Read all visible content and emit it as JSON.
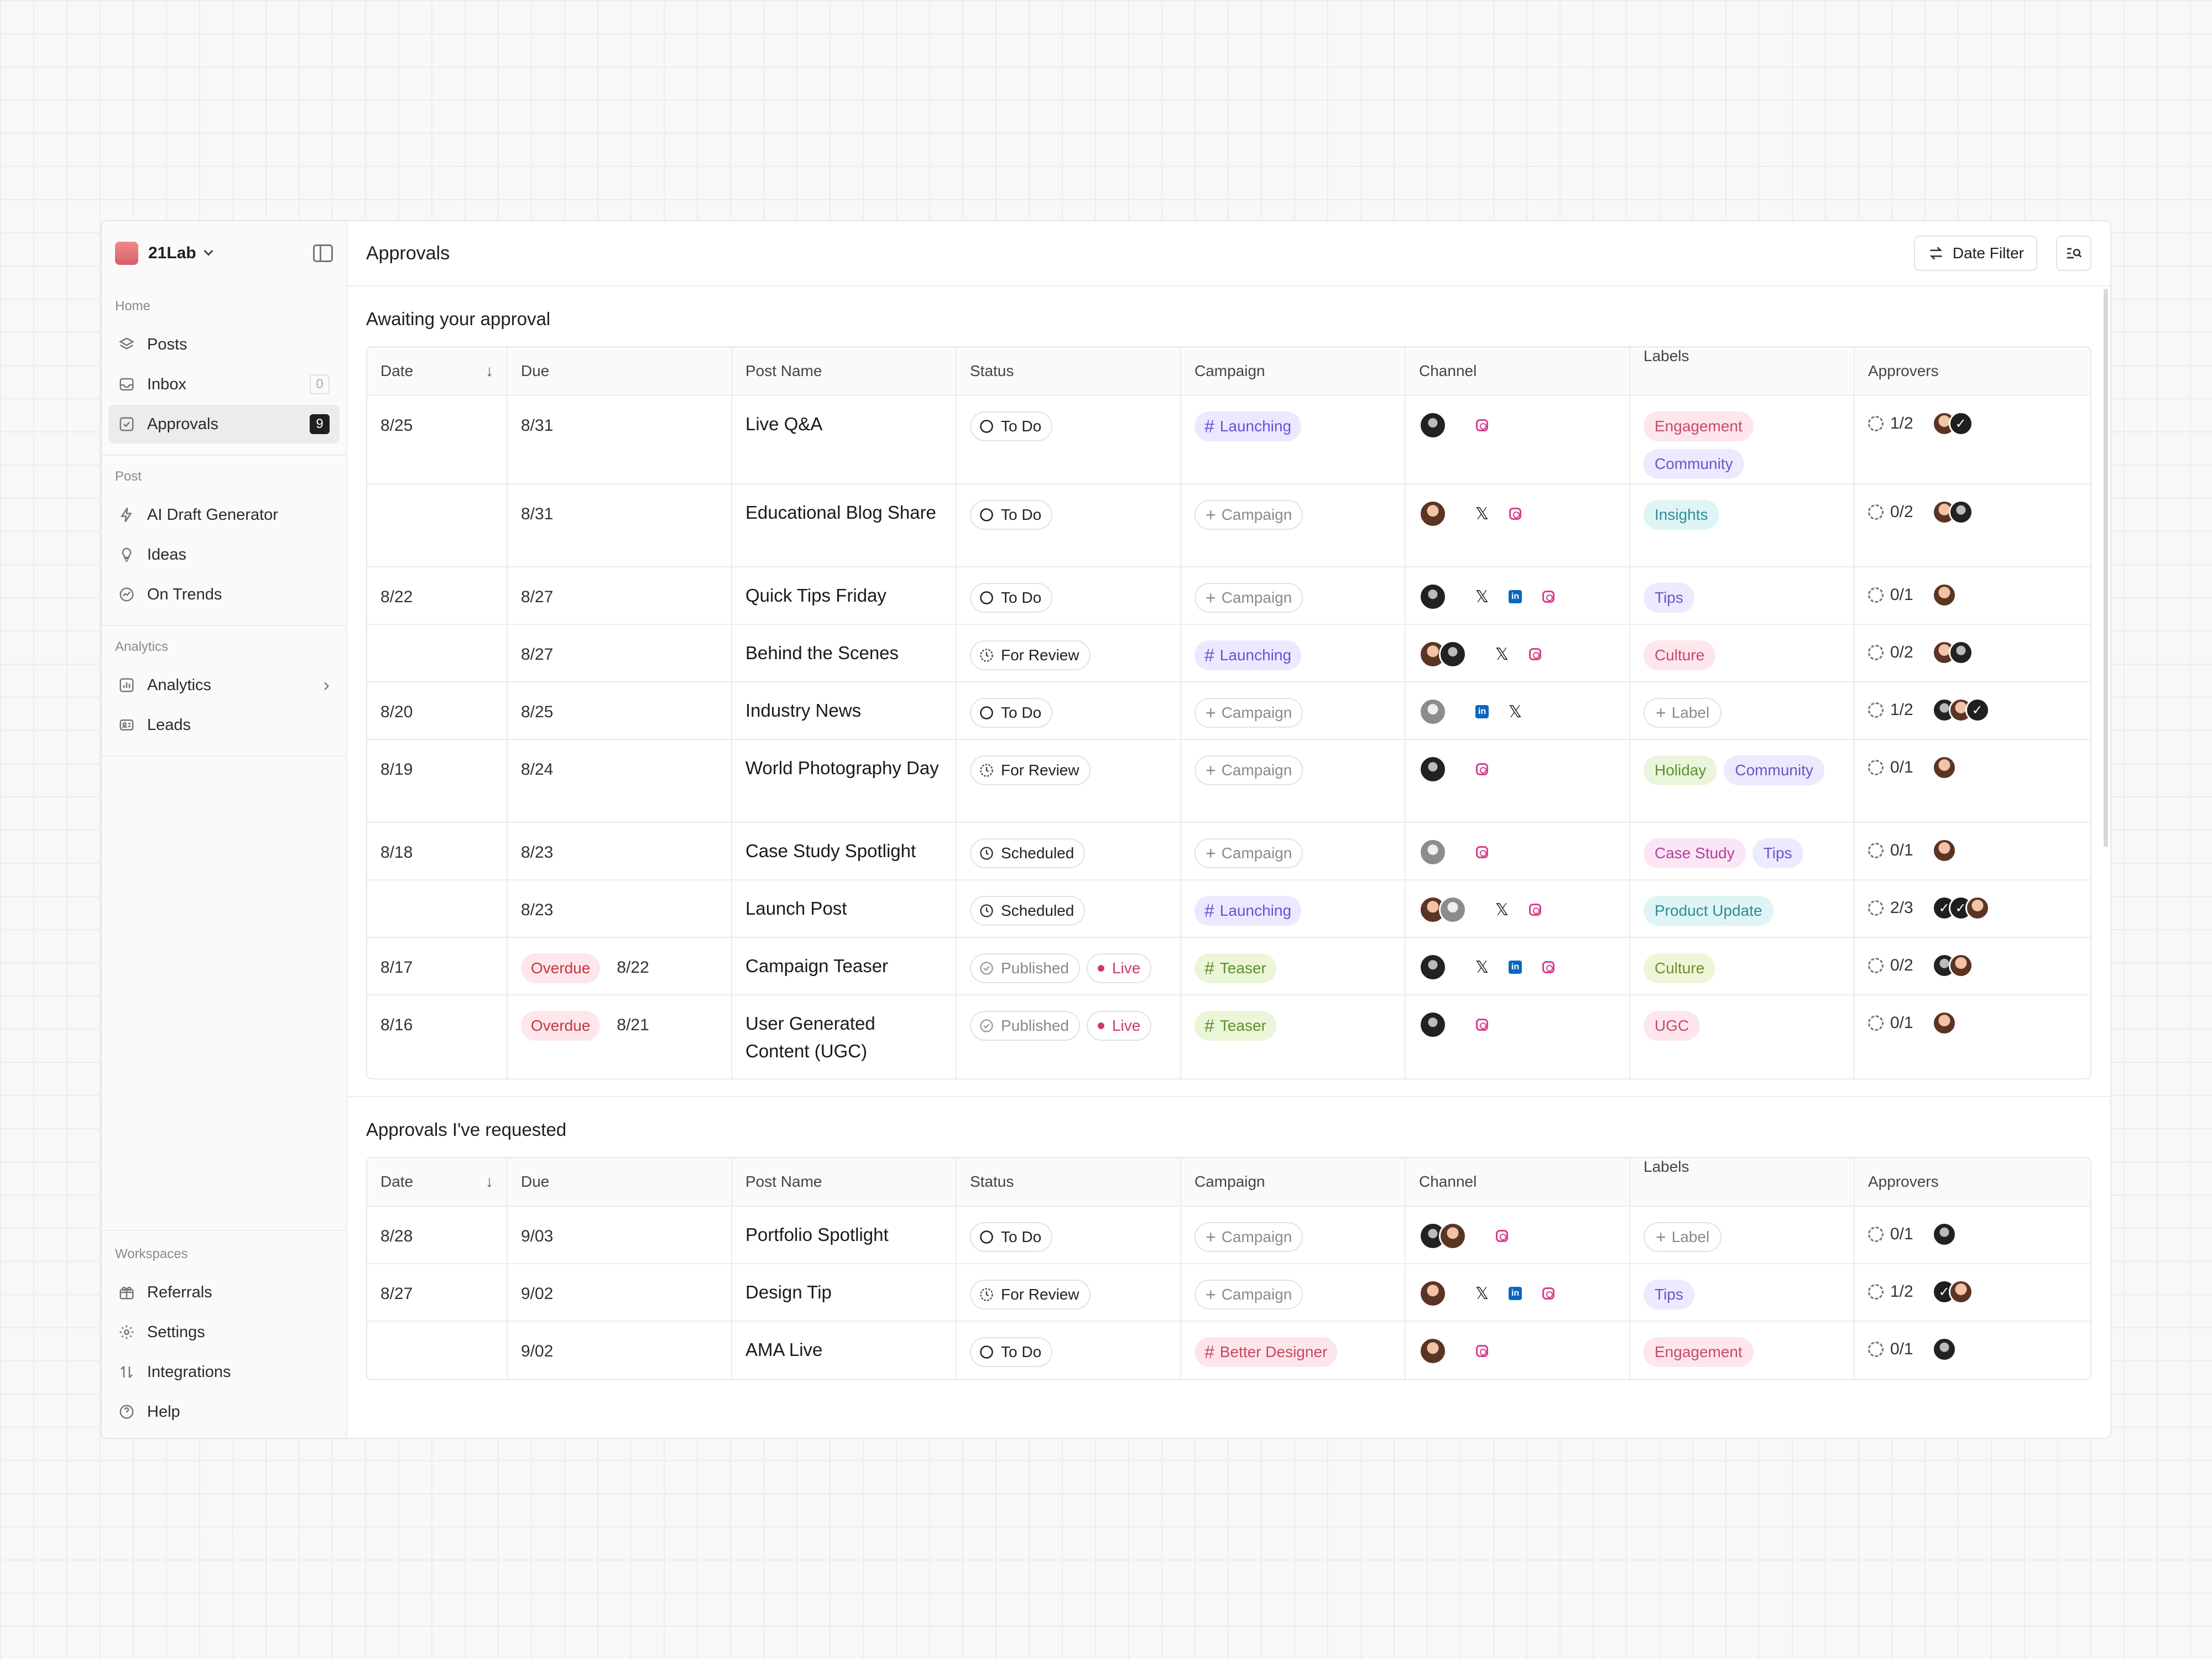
{
  "app": {
    "workspace": "21Lab",
    "page_title": "Approvals",
    "date_filter_label": "Date Filter"
  },
  "sidebar": {
    "home_title": "Home",
    "home_items": [
      {
        "label": "Posts",
        "icon": "stack-icon"
      },
      {
        "label": "Inbox",
        "icon": "inbox-icon",
        "count": "0"
      },
      {
        "label": "Approvals",
        "icon": "check-square-icon",
        "count": "9",
        "active": true
      }
    ],
    "post_title": "Post",
    "post_items": [
      {
        "label": "AI Draft Generator",
        "icon": "bolt-icon"
      },
      {
        "label": "Ideas",
        "icon": "bulb-icon"
      },
      {
        "label": "On Trends",
        "icon": "trend-icon"
      }
    ],
    "analytics_title": "Analytics",
    "analytics_items": [
      {
        "label": "Analytics",
        "icon": "chart-icon"
      },
      {
        "label": "Leads",
        "icon": "id-card-icon"
      }
    ],
    "workspaces_title": "Workspaces",
    "workspace_items": [
      {
        "label": "Referrals",
        "icon": "gift-icon"
      },
      {
        "label": "Settings",
        "icon": "gear-icon"
      },
      {
        "label": "Integrations",
        "icon": "sort-icon"
      },
      {
        "label": "Help",
        "icon": "help-icon"
      }
    ]
  },
  "columns": [
    "Date",
    "Due",
    "Post Name",
    "Status",
    "Campaign",
    "Channel",
    "Labels",
    "Approvers"
  ],
  "sections": [
    {
      "title": "Awaiting your approval",
      "rows": [
        {
          "date": "8/25",
          "due": "8/31",
          "name": "Live Q&A",
          "status": "To Do",
          "campaign": "Launching",
          "campaign_style": "purple",
          "avatars": [
            "dark"
          ],
          "socials": [
            "ig"
          ],
          "labels": [
            {
              "text": "Engagement",
              "style": "pink"
            },
            {
              "text": "Community",
              "style": "purple"
            }
          ],
          "approvals": "1/2",
          "approver_avatars": [
            "warm",
            "check"
          ]
        },
        {
          "date": "",
          "due": "8/31",
          "name": "Educational Blog Share",
          "status": "To Do",
          "campaign": "Campaign",
          "campaign_style": "empty",
          "avatars": [
            "warm"
          ],
          "socials": [
            "x",
            "ig"
          ],
          "labels": [
            {
              "text": "Insights",
              "style": "teal"
            }
          ],
          "approvals": "0/2",
          "approver_avatars": [
            "warm",
            "dark"
          ]
        },
        {
          "date": "8/22",
          "due": "8/27",
          "name": "Quick Tips Friday",
          "status": "To Do",
          "campaign": "Campaign",
          "campaign_style": "empty",
          "avatars": [
            "dark"
          ],
          "socials": [
            "x",
            "li",
            "ig"
          ],
          "labels": [
            {
              "text": "Tips",
              "style": "purple"
            }
          ],
          "approvals": "0/1",
          "approver_avatars": [
            "warm"
          ]
        },
        {
          "date": "",
          "due": "8/27",
          "name": "Behind the Scenes",
          "status": "For Review",
          "campaign": "Launching",
          "campaign_style": "purple",
          "avatars": [
            "warm",
            "dark"
          ],
          "socials": [
            "x",
            "ig"
          ],
          "labels": [
            {
              "text": "Culture",
              "style": "pink"
            }
          ],
          "approvals": "0/2",
          "approver_avatars": [
            "warm",
            "dark"
          ]
        },
        {
          "date": "8/20",
          "due": "8/25",
          "name": "Industry News",
          "status": "To Do",
          "campaign": "Campaign",
          "campaign_style": "empty",
          "avatars": [
            "grey"
          ],
          "socials": [
            "li",
            "x"
          ],
          "labels": [
            {
              "text": "Label",
              "style": "empty"
            }
          ],
          "approvals": "1/2",
          "approver_avatars": [
            "dark",
            "warm",
            "check"
          ]
        },
        {
          "date": "8/19",
          "due": "8/24",
          "name": "World Photography Day",
          "status": "For Review",
          "campaign": "Campaign",
          "campaign_style": "empty",
          "avatars": [
            "dark"
          ],
          "socials": [
            "ig"
          ],
          "labels": [
            {
              "text": "Holiday",
              "style": "green"
            },
            {
              "text": "Community",
              "style": "purple"
            }
          ],
          "approvals": "0/1",
          "approver_avatars": [
            "warm"
          ]
        },
        {
          "date": "8/18",
          "due": "8/23",
          "name": "Case Study Spotlight",
          "status": "Scheduled",
          "campaign": "Campaign",
          "campaign_style": "empty",
          "avatars": [
            "grey"
          ],
          "socials": [
            "ig"
          ],
          "labels": [
            {
              "text": "Case Study",
              "style": "magenta"
            },
            {
              "text": "Tips",
              "style": "purple"
            }
          ],
          "approvals": "0/1",
          "approver_avatars": [
            "warm"
          ]
        },
        {
          "date": "",
          "due": "8/23",
          "name": "Launch Post",
          "status": "Scheduled",
          "campaign": "Launching",
          "campaign_style": "purple",
          "avatars": [
            "warm",
            "grey"
          ],
          "socials": [
            "x",
            "ig"
          ],
          "labels": [
            {
              "text": "Product Update",
              "style": "teal"
            }
          ],
          "approvals": "2/3",
          "approver_avatars": [
            "check",
            "check",
            "warm"
          ]
        },
        {
          "date": "8/17",
          "overdue": "Overdue",
          "due": "8/22",
          "name": "Campaign Teaser",
          "status": "Published",
          "live": "Live",
          "campaign": "Teaser",
          "campaign_style": "green",
          "avatars": [
            "dark"
          ],
          "socials": [
            "x",
            "li",
            "ig"
          ],
          "labels": [
            {
              "text": "Culture",
              "style": "lime"
            }
          ],
          "approvals": "0/2",
          "approver_avatars": [
            "dark",
            "warm"
          ]
        },
        {
          "date": "8/16",
          "overdue": "Overdue",
          "due": "8/21",
          "name": "User Generated Content (UGC)",
          "status": "Published",
          "live": "Live",
          "campaign": "Teaser",
          "campaign_style": "green",
          "avatars": [
            "dark"
          ],
          "socials": [
            "ig"
          ],
          "labels": [
            {
              "text": "UGC",
              "style": "pink"
            }
          ],
          "approvals": "0/1",
          "approver_avatars": [
            "warm"
          ]
        }
      ]
    },
    {
      "title": "Approvals I've requested",
      "rows": [
        {
          "date": "8/28",
          "due": "9/03",
          "name": "Portfolio Spotlight",
          "status": "To Do",
          "campaign": "Campaign",
          "campaign_style": "empty",
          "avatars": [
            "dark",
            "warm"
          ],
          "socials": [
            "ig"
          ],
          "labels": [
            {
              "text": "Label",
              "style": "empty"
            }
          ],
          "approvals": "0/1",
          "approver_avatars": [
            "dark"
          ]
        },
        {
          "date": "8/27",
          "due": "9/02",
          "name": "Design Tip",
          "status": "For Review",
          "campaign": "Campaign",
          "campaign_style": "empty",
          "avatars": [
            "warm"
          ],
          "socials": [
            "x",
            "li",
            "ig"
          ],
          "labels": [
            {
              "text": "Tips",
              "style": "purple"
            }
          ],
          "approvals": "1/2",
          "approver_avatars": [
            "check",
            "warm"
          ]
        },
        {
          "date": "",
          "due": "9/02",
          "name": "AMA Live",
          "status": "To Do",
          "campaign": "Better Designer",
          "campaign_style": "pink",
          "avatars": [
            "warm"
          ],
          "socials": [
            "ig"
          ],
          "labels": [
            {
              "text": "Engagement",
              "style": "pink"
            }
          ],
          "approvals": "0/1",
          "approver_avatars": [
            "dark"
          ]
        }
      ]
    }
  ]
}
